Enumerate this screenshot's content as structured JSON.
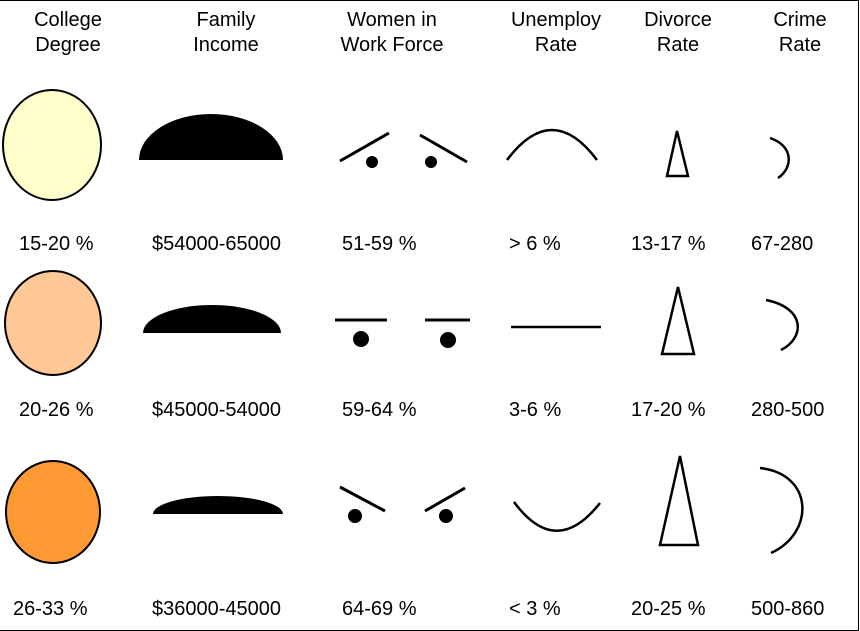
{
  "columns": [
    {
      "line1": "College",
      "line2": "Degree"
    },
    {
      "line1": "Family",
      "line2": "Income"
    },
    {
      "line1": "Women in",
      "line2": "Work Force"
    },
    {
      "line1": "Unemploy",
      "line2": "Rate"
    },
    {
      "line1": "Divorce",
      "line2": "Rate"
    },
    {
      "line1": "Crime",
      "line2": "Rate"
    }
  ],
  "rows": [
    {
      "college": "15-20 %",
      "income": "$54000-65000",
      "women": "51-59 %",
      "unemploy": "> 6 %",
      "divorce": "13-17 %",
      "crime": "67-280",
      "face_color": "#ffffcc"
    },
    {
      "college": "20-26 %",
      "income": "$45000-54000",
      "women": "59-64 %",
      "unemploy": "3-6 %",
      "divorce": "17-20 %",
      "crime": "280-500",
      "face_color": "#ffc896"
    },
    {
      "college": "26-33 %",
      "income": "$36000-45000",
      "women": "64-69 %",
      "unemploy": "< 3 %",
      "divorce": "20-25 %",
      "crime": "500-860",
      "face_color": "#ff9933"
    }
  ]
}
